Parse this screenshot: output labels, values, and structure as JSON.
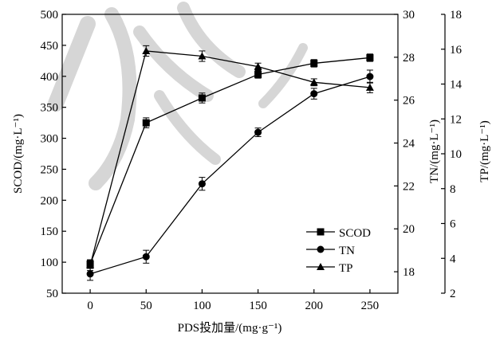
{
  "chart_data": {
    "type": "line",
    "x": [
      0,
      50,
      100,
      150,
      200,
      250
    ],
    "xlabel": "PDS投加量/(mg·g⁻¹)",
    "x_ticks": [
      "0",
      "50",
      "100",
      "150",
      "200",
      "250"
    ],
    "xlim": [
      -25,
      275
    ],
    "axes": [
      {
        "id": "left",
        "label": "SCOD/(mg·L⁻¹)",
        "lim": [
          50,
          500
        ],
        "ticks": [
          "50",
          "100",
          "150",
          "200",
          "250",
          "300",
          "350",
          "400",
          "450",
          "500"
        ]
      },
      {
        "id": "tn",
        "label": "TN/(mg·L⁻¹)",
        "lim": [
          17,
          30
        ],
        "ticks": [
          "18",
          "20",
          "22",
          "24",
          "26",
          "28",
          "30"
        ]
      },
      {
        "id": "tp",
        "label": "TP/(mg·L⁻¹)",
        "lim": [
          2,
          18
        ],
        "ticks": [
          "2",
          "4",
          "6",
          "8",
          "10",
          "12",
          "14",
          "16",
          "18"
        ]
      }
    ],
    "series": [
      {
        "name": "SCOD",
        "axis": "left",
        "marker": "square",
        "values": [
          97,
          325,
          365,
          403,
          421,
          430
        ],
        "errors": [
          7,
          8,
          8,
          6,
          6,
          6
        ]
      },
      {
        "name": "TN",
        "axis": "tn",
        "marker": "circle",
        "values": [
          17.9,
          18.7,
          22.1,
          24.5,
          26.3,
          27.1
        ],
        "errors": [
          0.3,
          0.3,
          0.3,
          0.2,
          0.25,
          0.3
        ]
      },
      {
        "name": "TP",
        "axis": "tp",
        "marker": "triangle",
        "values": [
          3.6,
          15.9,
          15.6,
          15.0,
          14.1,
          13.8
        ],
        "errors": [
          0.3,
          0.3,
          0.3,
          0.2,
          0.2,
          0.3
        ]
      }
    ],
    "legend": [
      "SCOD",
      "TN",
      "TP"
    ],
    "legend_position": "bottom-right",
    "grid": false
  }
}
